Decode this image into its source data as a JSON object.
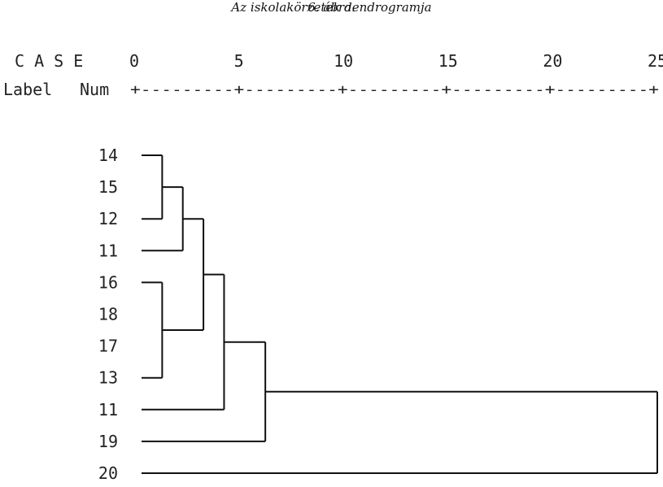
{
  "figure": {
    "number": "6. ábra.",
    "title": "Az iskolakörzetek dendrogramja"
  },
  "header": {
    "case_label": "C A S E",
    "label_col": "Label",
    "num_col": "Num",
    "ruler": "+---------+---------+---------+---------+---------+"
  },
  "chart_data": {
    "type": "dendrogram",
    "title": "Az iskolakörzetek dendrogramja",
    "scale_ticks": [
      0,
      5,
      10,
      15,
      20,
      25
    ],
    "scale_range": [
      0,
      25
    ],
    "leaves": [
      "14",
      "15",
      "12",
      "11",
      "16",
      "18",
      "17",
      "13",
      "11",
      "19",
      "20"
    ],
    "merges": [
      {
        "id": "m1",
        "left": "leaf:0",
        "right": "leaf:2",
        "height": 1.0
      },
      {
        "id": "m2",
        "left": "m1",
        "right": "leaf:3",
        "height": 2.0
      },
      {
        "id": "m3",
        "left": "leaf:4",
        "right": "leaf:7",
        "height": 1.0
      },
      {
        "id": "m4",
        "left": "m2",
        "right": "m3",
        "height": 3.0
      },
      {
        "id": "m5",
        "left": "m4",
        "right": "leaf:8",
        "height": 4.0
      },
      {
        "id": "m6",
        "left": "m5",
        "right": "leaf:9",
        "height": 6.0
      },
      {
        "id": "m7",
        "left": "m6",
        "right": "leaf:10",
        "height": 25.0
      }
    ]
  }
}
